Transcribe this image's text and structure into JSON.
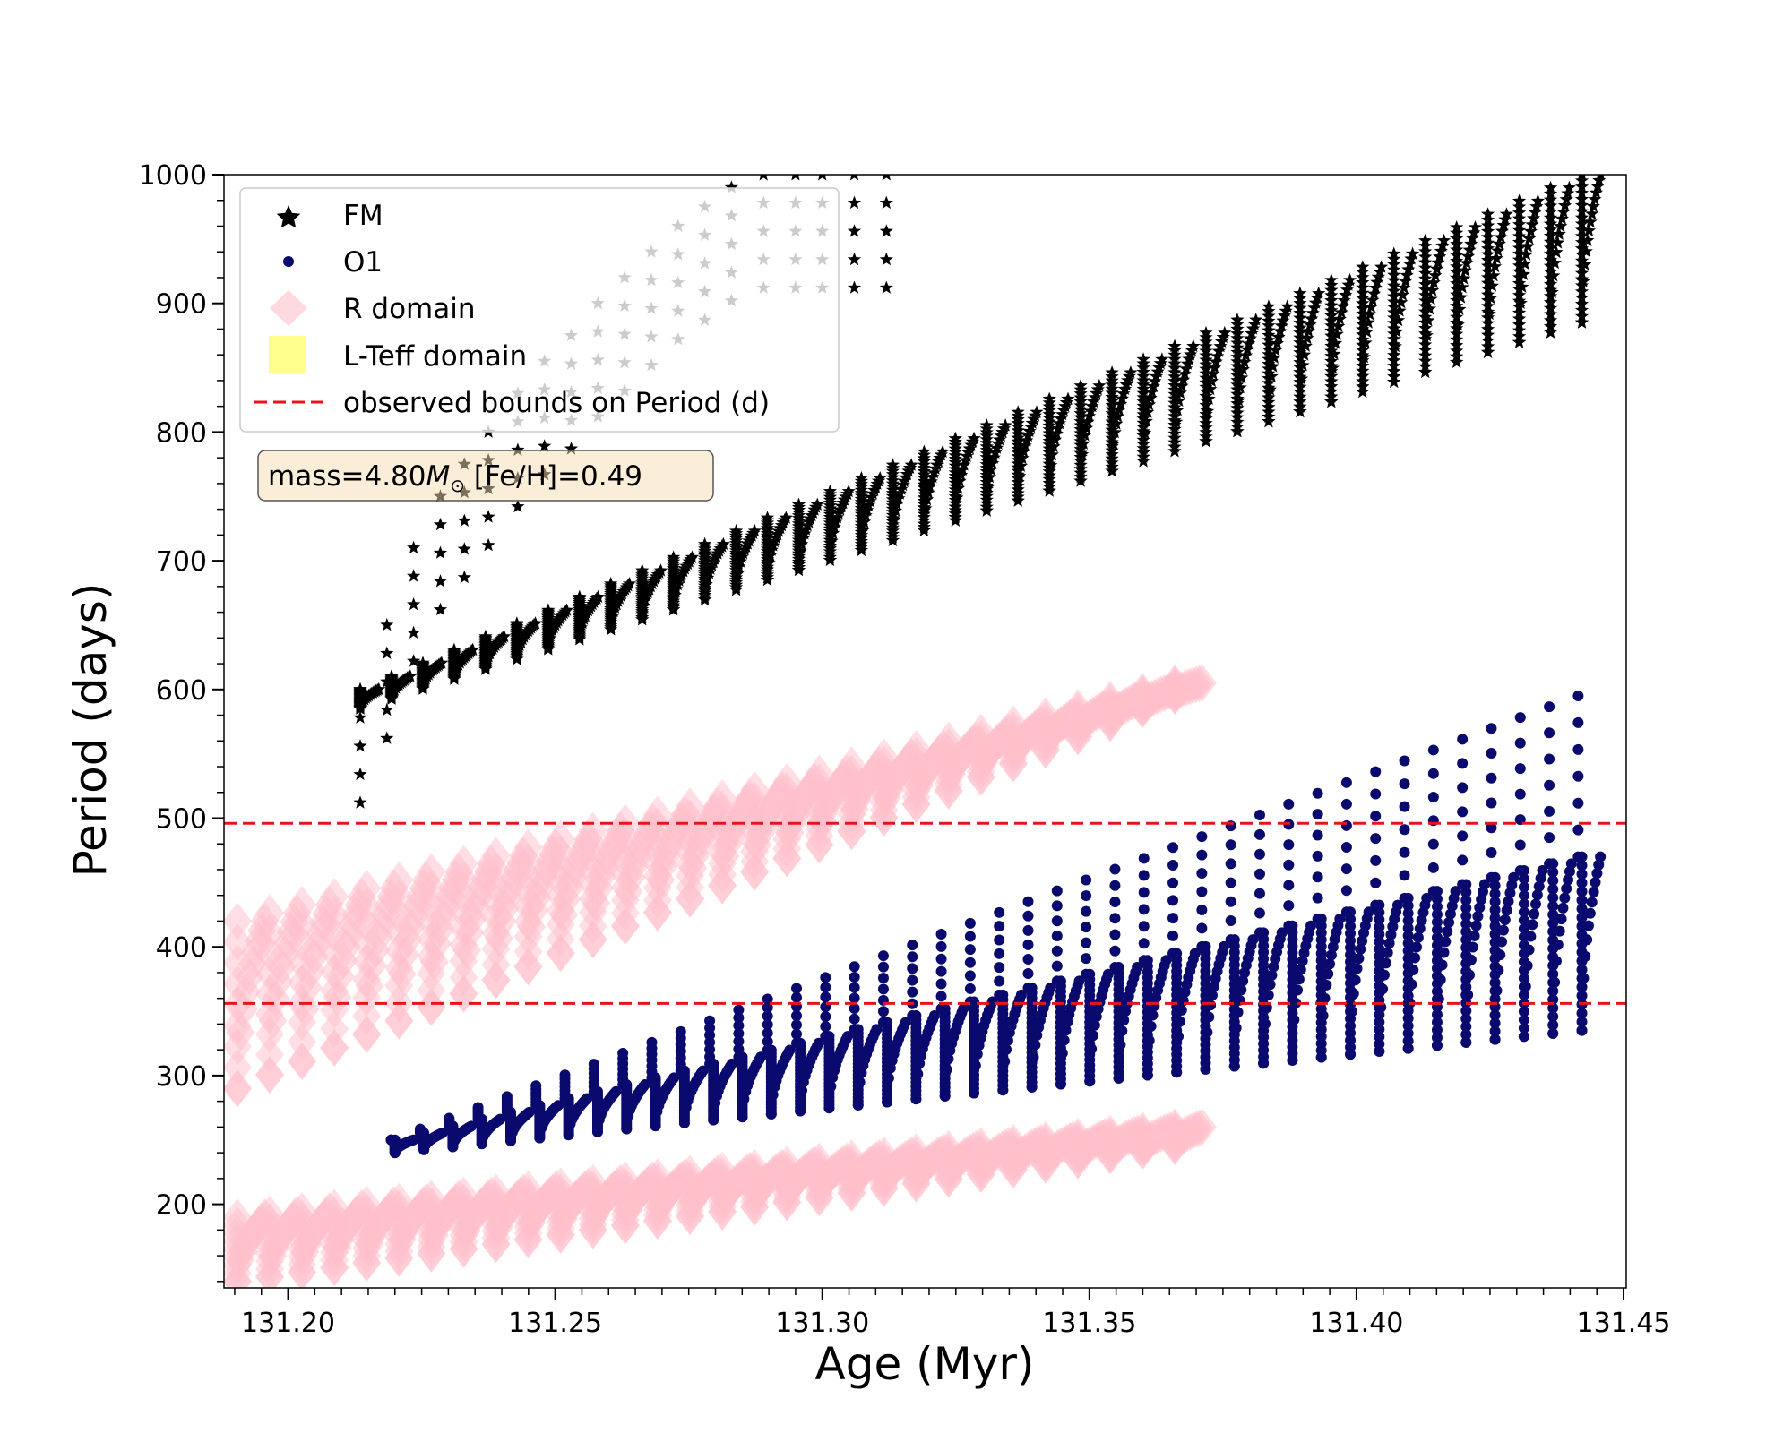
{
  "chart_data": {
    "type": "scatter",
    "title": "",
    "xlabel": "Age (Myr)",
    "ylabel": "Period (days)",
    "xlim": [
      131.188,
      131.4505
    ],
    "ylim": [
      135,
      1000
    ],
    "x_ticks": [
      "131.20",
      "131.25",
      "131.30",
      "131.35",
      "131.40",
      "131.45"
    ],
    "x_tick_values": [
      131.2,
      131.25,
      131.3,
      131.35,
      131.4,
      131.45
    ],
    "y_ticks": [
      "200",
      "300",
      "400",
      "500",
      "600",
      "700",
      "800",
      "900",
      "1000"
    ],
    "y_tick_values": [
      200,
      300,
      400,
      500,
      600,
      700,
      800,
      900,
      1000
    ],
    "grid": false,
    "legend_position": "top-left",
    "legend": [
      {
        "label": "FM",
        "marker": "star",
        "color": "#000000"
      },
      {
        "label": "O1",
        "marker": "circle",
        "color": "#0a0a6e"
      },
      {
        "label": "R domain",
        "marker": "diamond",
        "color": "#ffc0cb"
      },
      {
        "label": "L-Teff domain",
        "marker": "square",
        "color": "#ffff66"
      },
      {
        "label": "observed bounds on Period (d)",
        "marker": "dashed-line",
        "color": "#e8141c"
      }
    ],
    "annotation": {
      "prefix": "mass=4.80",
      "symbol": "M",
      "subscript": "⊙",
      "suffix": " [Fe/H]=0.49"
    },
    "observed_bounds": [
      496,
      356
    ],
    "series": [
      {
        "name": "FM",
        "marker": "star",
        "color": "#000000",
        "x_start": 131.2135,
        "x_end": 131.4422,
        "cycles": 40,
        "base_start": 585,
        "base_end": 885,
        "peak_start": 600,
        "peak_end": 1000,
        "sparse_points": [
          [
            131.2135,
            600
          ],
          [
            131.2185,
            650
          ],
          [
            131.2235,
            710
          ],
          [
            131.2285,
            750
          ],
          [
            131.233,
            775
          ],
          [
            131.2375,
            800
          ],
          [
            131.243,
            830
          ],
          [
            131.248,
            855
          ],
          [
            131.253,
            875
          ],
          [
            131.258,
            900
          ],
          [
            131.263,
            920
          ],
          [
            131.268,
            940
          ],
          [
            131.273,
            960
          ],
          [
            131.278,
            975
          ],
          [
            131.283,
            990
          ],
          [
            131.289,
            1000
          ],
          [
            131.295,
            1000
          ],
          [
            131.3,
            1000
          ],
          [
            131.306,
            1000
          ],
          [
            131.312,
            1000
          ]
        ]
      },
      {
        "name": "O1",
        "marker": "circle",
        "color": "#0a0a6e",
        "x_start": 131.22,
        "x_end": 131.4422,
        "cycles": 42,
        "base_start": 240,
        "base_end": 335,
        "peak_start": 250,
        "peak_end": 470,
        "outer_start": 250,
        "outer_end": 595
      },
      {
        "name": "R domain (upper)",
        "marker": "diamond",
        "color": "#ffc0cb",
        "x_start": 131.1905,
        "x_end": 131.366,
        "cycles": 30,
        "base_start": 290,
        "base_end": 595,
        "peak_start": 420,
        "peak_end": 605
      },
      {
        "name": "R domain (lower)",
        "marker": "diamond",
        "color": "#ffc0cb",
        "x_start": 131.1905,
        "x_end": 131.366,
        "cycles": 30,
        "base_start": 140,
        "base_end": 245,
        "peak_start": 190,
        "peak_end": 260
      }
    ]
  }
}
